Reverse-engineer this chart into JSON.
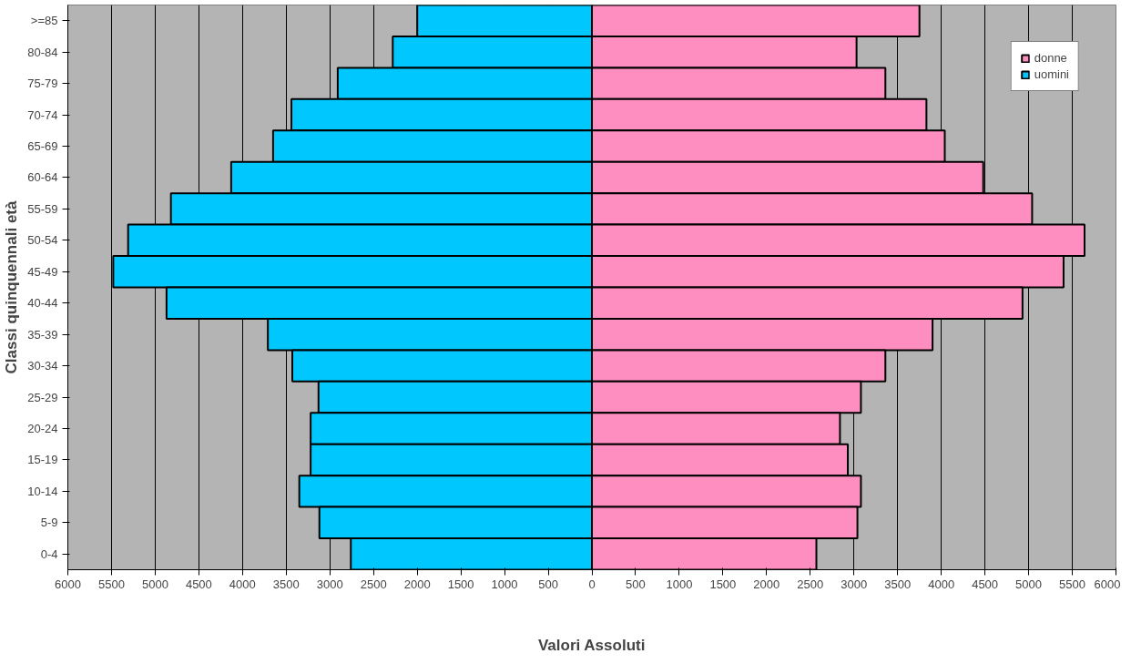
{
  "chart_data": {
    "type": "bar",
    "orientation": "horizontal",
    "xlabel": "Valori Assoluti",
    "ylabel": "Classi quinquennali età",
    "categories": [
      ">=85",
      "80-84",
      "75-79",
      "70-74",
      "65-69",
      "60-64",
      "55-59",
      "50-54",
      "45-49",
      "40-44",
      "35-39",
      "30-34",
      "25-29",
      "20-24",
      "15-19",
      "10-14",
      "5-9",
      "0-4"
    ],
    "series": [
      {
        "name": "donne",
        "color": "#ff8ec0",
        "values": [
          3750,
          3030,
          3360,
          3830,
          4040,
          4480,
          5040,
          5640,
          5400,
          4930,
          3900,
          3360,
          3080,
          2840,
          2930,
          3080,
          3040,
          2570
        ]
      },
      {
        "name": "uomini",
        "color": "#00c8ff",
        "values": [
          -2000,
          -2280,
          -2910,
          -3440,
          -3650,
          -4130,
          -4820,
          -5310,
          -5480,
          -4870,
          -3710,
          -3430,
          -3130,
          -3220,
          -3220,
          -3350,
          -3120,
          -2760
        ]
      }
    ],
    "xlim": [
      -6000,
      6000
    ],
    "xticks": [
      {
        "value": -6000,
        "label": "6000"
      },
      {
        "value": -5500,
        "label": "5500"
      },
      {
        "value": -5000,
        "label": "5000"
      },
      {
        "value": -4500,
        "label": "4500"
      },
      {
        "value": -4000,
        "label": "4000"
      },
      {
        "value": -3500,
        "label": "3500"
      },
      {
        "value": -3000,
        "label": "3000"
      },
      {
        "value": -2500,
        "label": "2500"
      },
      {
        "value": -2000,
        "label": "2000"
      },
      {
        "value": -1500,
        "label": "1500"
      },
      {
        "value": -1000,
        "label": "1000"
      },
      {
        "value": -500,
        "label": "500"
      },
      0,
      500,
      1000,
      1500,
      2000,
      2500,
      3000,
      3500,
      4000,
      4500,
      5000,
      5500,
      6000
    ],
    "stacked": true,
    "grid": "x",
    "legend": "top right"
  }
}
